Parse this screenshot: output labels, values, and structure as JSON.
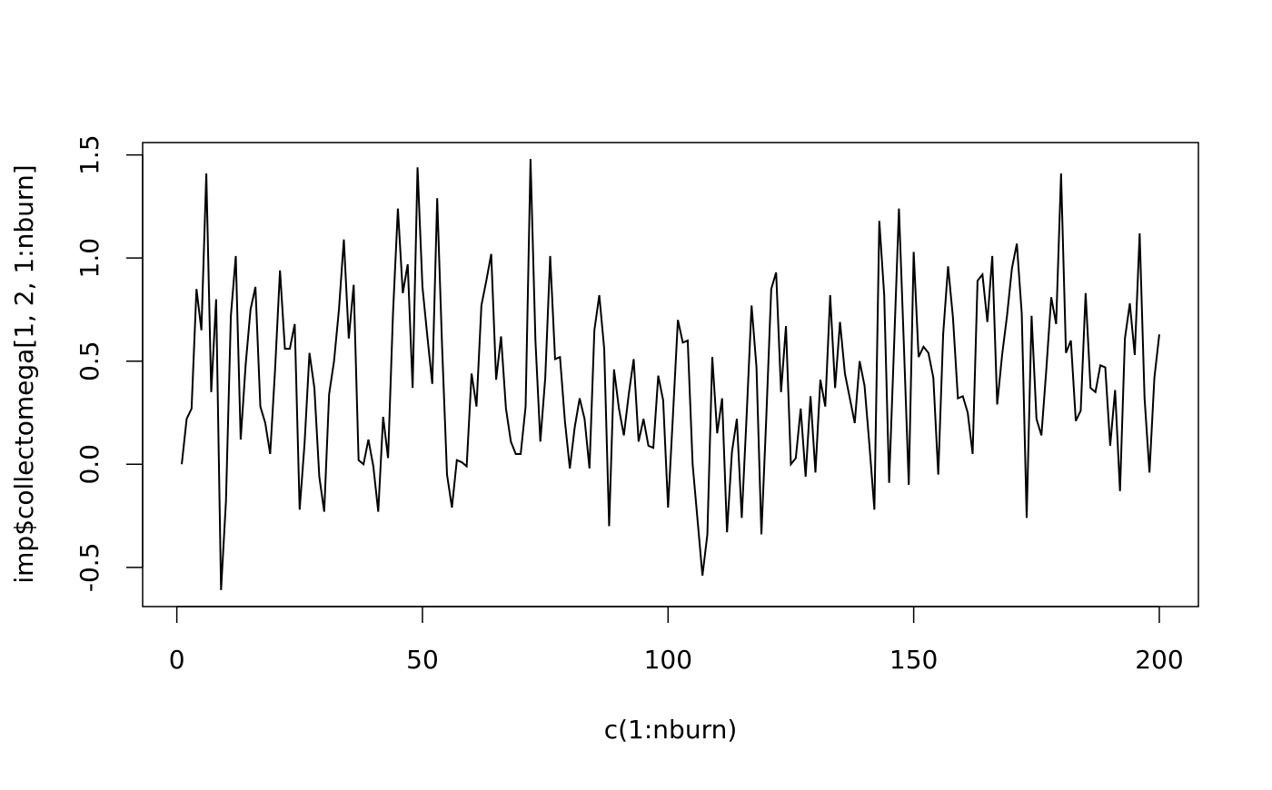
{
  "chart_data": {
    "type": "line",
    "xlabel": "c(1:nburn)",
    "ylabel": "imp$collectomega[1, 2, 1:nburn]",
    "x": [
      1,
      2,
      3,
      4,
      5,
      6,
      7,
      8,
      9,
      10,
      11,
      12,
      13,
      14,
      15,
      16,
      17,
      18,
      19,
      20,
      21,
      22,
      23,
      24,
      25,
      26,
      27,
      28,
      29,
      30,
      31,
      32,
      33,
      34,
      35,
      36,
      37,
      38,
      39,
      40,
      41,
      42,
      43,
      44,
      45,
      46,
      47,
      48,
      49,
      50,
      51,
      52,
      53,
      54,
      55,
      56,
      57,
      58,
      59,
      60,
      61,
      62,
      63,
      64,
      65,
      66,
      67,
      68,
      69,
      70,
      71,
      72,
      73,
      74,
      75,
      76,
      77,
      78,
      79,
      80,
      81,
      82,
      83,
      84,
      85,
      86,
      87,
      88,
      89,
      90,
      91,
      92,
      93,
      94,
      95,
      96,
      97,
      98,
      99,
      100,
      101,
      102,
      103,
      104,
      105,
      106,
      107,
      108,
      109,
      110,
      111,
      112,
      113,
      114,
      115,
      116,
      117,
      118,
      119,
      120,
      121,
      122,
      123,
      124,
      125,
      126,
      127,
      128,
      129,
      130,
      131,
      132,
      133,
      134,
      135,
      136,
      137,
      138,
      139,
      140,
      141,
      142,
      143,
      144,
      145,
      146,
      147,
      148,
      149,
      150,
      151,
      152,
      153,
      154,
      155,
      156,
      157,
      158,
      159,
      160,
      161,
      162,
      163,
      164,
      165,
      166,
      167,
      168,
      169,
      170,
      171,
      172,
      173,
      174,
      175,
      176,
      177,
      178,
      179,
      180,
      181,
      182,
      183,
      184,
      185,
      186,
      187,
      188,
      189,
      190,
      191,
      192,
      193,
      194,
      195,
      196,
      197,
      198,
      199,
      200
    ],
    "values": [
      0.0,
      0.22,
      0.27,
      0.85,
      0.65,
      1.41,
      0.35,
      0.8,
      -0.61,
      -0.18,
      0.72,
      1.01,
      0.12,
      0.48,
      0.75,
      0.86,
      0.28,
      0.2,
      0.05,
      0.46,
      0.94,
      0.56,
      0.56,
      0.68,
      -0.22,
      0.1,
      0.54,
      0.37,
      -0.06,
      -0.23,
      0.34,
      0.5,
      0.75,
      1.09,
      0.61,
      0.87,
      0.02,
      0.0,
      0.12,
      -0.01,
      -0.23,
      0.23,
      0.03,
      0.73,
      1.24,
      0.83,
      0.97,
      0.37,
      1.44,
      0.86,
      0.62,
      0.39,
      1.29,
      0.57,
      -0.05,
      -0.21,
      0.02,
      0.01,
      -0.01,
      0.44,
      0.28,
      0.77,
      0.89,
      1.02,
      0.41,
      0.62,
      0.27,
      0.11,
      0.05,
      0.05,
      0.28,
      1.48,
      0.6,
      0.11,
      0.42,
      1.01,
      0.51,
      0.52,
      0.21,
      -0.02,
      0.18,
      0.32,
      0.22,
      -0.02,
      0.65,
      0.82,
      0.56,
      -0.3,
      0.46,
      0.27,
      0.14,
      0.34,
      0.51,
      0.11,
      0.22,
      0.09,
      0.08,
      0.43,
      0.31,
      -0.21,
      0.24,
      0.7,
      0.59,
      0.6,
      0.0,
      -0.27,
      -0.54,
      -0.34,
      0.52,
      0.15,
      0.32,
      -0.33,
      0.06,
      0.22,
      -0.26,
      0.24,
      0.77,
      0.47,
      -0.34,
      0.23,
      0.85,
      0.93,
      0.35,
      0.67,
      0.0,
      0.03,
      0.27,
      -0.06,
      0.33,
      -0.04,
      0.41,
      0.28,
      0.82,
      0.37,
      0.69,
      0.44,
      0.32,
      0.2,
      0.5,
      0.38,
      0.09,
      -0.22,
      1.18,
      0.82,
      -0.09,
      0.57,
      1.24,
      0.58,
      -0.1,
      1.03,
      0.52,
      0.57,
      0.54,
      0.42,
      -0.05,
      0.63,
      0.96,
      0.71,
      0.32,
      0.33,
      0.25,
      0.05,
      0.89,
      0.92,
      0.69,
      1.01,
      0.29,
      0.53,
      0.72,
      0.95,
      1.07,
      0.73,
      -0.26,
      0.72,
      0.22,
      0.14,
      0.46,
      0.81,
      0.68,
      1.41,
      0.54,
      0.6,
      0.21,
      0.26,
      0.83,
      0.37,
      0.35,
      0.48,
      0.47,
      0.09,
      0.36,
      -0.13,
      0.61,
      0.78,
      0.53,
      1.12,
      0.32,
      -0.04,
      0.42,
      0.63
    ],
    "color": "#000000",
    "xlim": [
      -6.96,
      207.96
    ],
    "ylim": [
      -0.69,
      1.56
    ],
    "xticks": [
      0,
      50,
      100,
      150,
      200
    ],
    "yticks": [
      -0.5,
      {
        "value": 0,
        "label": "0.0"
      },
      0.5,
      {
        "value": 1,
        "label": "1.0"
      },
      1.5
    ],
    "grid": false
  }
}
